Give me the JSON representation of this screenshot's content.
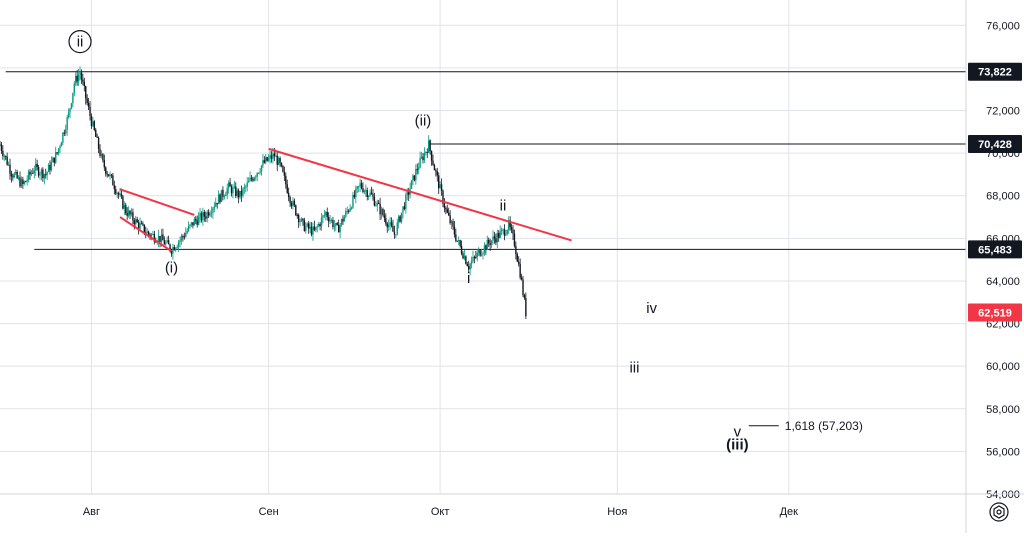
{
  "chart_data": {
    "type": "candlestick",
    "title": "",
    "xlabel": "",
    "ylabel": "",
    "ylim": [
      54000,
      77000
    ],
    "y_ticks": [
      54000,
      56000,
      58000,
      60000,
      62000,
      64000,
      66000,
      68000,
      70000,
      72000,
      74000,
      76000
    ],
    "y_tick_labels": [
      "54,000",
      "56,000",
      "58,000",
      "60,000",
      "62,000",
      "64,000",
      "66,000",
      "68,000",
      "70,000",
      "72,000",
      "74,000",
      "76,000"
    ],
    "x_tick_labels": [
      "Авг",
      "Сен",
      "Окт",
      "Ноя",
      "Дек"
    ],
    "x_range": [
      "2024-07-16",
      "2025-01-01"
    ],
    "x_ticks": [
      "2024-08-01",
      "2024-09-01",
      "2024-10-01",
      "2024-11-01",
      "2024-12-01"
    ],
    "grid": true,
    "price_path": [
      [
        "2024-07-16",
        70400
      ],
      [
        "2024-07-18",
        69100
      ],
      [
        "2024-07-20",
        68500
      ],
      [
        "2024-07-22",
        69300
      ],
      [
        "2024-07-24",
        69000
      ],
      [
        "2024-07-26",
        70000
      ],
      [
        "2024-07-28",
        71800
      ],
      [
        "2024-07-29",
        73300
      ],
      [
        "2024-07-30",
        73800
      ],
      [
        "2024-07-31",
        72600
      ],
      [
        "2024-08-01",
        71500
      ],
      [
        "2024-08-03",
        69500
      ],
      [
        "2024-08-05",
        68500
      ],
      [
        "2024-08-07",
        67300
      ],
      [
        "2024-08-09",
        66700
      ],
      [
        "2024-08-11",
        66200
      ],
      [
        "2024-08-13",
        66000
      ],
      [
        "2024-08-15",
        65500
      ],
      [
        "2024-08-17",
        66100
      ],
      [
        "2024-08-19",
        66800
      ],
      [
        "2024-08-21",
        67100
      ],
      [
        "2024-08-23",
        67800
      ],
      [
        "2024-08-25",
        68400
      ],
      [
        "2024-08-27",
        68000
      ],
      [
        "2024-08-29",
        68800
      ],
      [
        "2024-08-31",
        69500
      ],
      [
        "2024-09-02",
        69900
      ],
      [
        "2024-09-03",
        69400
      ],
      [
        "2024-09-05",
        67700
      ],
      [
        "2024-09-07",
        66600
      ],
      [
        "2024-09-09",
        66300
      ],
      [
        "2024-09-11",
        67200
      ],
      [
        "2024-09-13",
        66400
      ],
      [
        "2024-09-15",
        67400
      ],
      [
        "2024-09-17",
        68500
      ],
      [
        "2024-09-19",
        68000
      ],
      [
        "2024-09-21",
        67100
      ],
      [
        "2024-09-23",
        66200
      ],
      [
        "2024-09-25",
        67800
      ],
      [
        "2024-09-27",
        69300
      ],
      [
        "2024-09-29",
        70400
      ],
      [
        "2024-09-30",
        69300
      ],
      [
        "2024-10-02",
        67300
      ],
      [
        "2024-10-04",
        65900
      ],
      [
        "2024-10-06",
        64700
      ],
      [
        "2024-10-08",
        65400
      ],
      [
        "2024-10-10",
        65900
      ],
      [
        "2024-10-12",
        66300
      ],
      [
        "2024-10-13",
        66600
      ],
      [
        "2024-10-14",
        65800
      ],
      [
        "2024-10-15",
        64400
      ],
      [
        "2024-10-16",
        62519
      ]
    ],
    "horizontal_levels": [
      {
        "price": 73822,
        "label": "73,822"
      },
      {
        "price": 70428,
        "label": "70,428"
      },
      {
        "price": 65483,
        "label": "65,483"
      }
    ],
    "last_price": {
      "price": 62519,
      "label": "62,519",
      "color": "#f23645"
    },
    "trendlines": [
      {
        "from": [
          "2024-08-06",
          68300
        ],
        "to": [
          "2024-08-19",
          67100
        ]
      },
      {
        "from": [
          "2024-08-06",
          67000
        ],
        "to": [
          "2024-08-15",
          65400
        ]
      },
      {
        "from": [
          "2024-09-01",
          70200
        ],
        "to": [
          "2024-10-24",
          65900
        ]
      }
    ],
    "wave_labels": [
      {
        "text": "ii",
        "date": "2024-07-30",
        "price": 75000,
        "circled": true
      },
      {
        "text": "(i)",
        "date": "2024-08-15",
        "price": 64400
      },
      {
        "text": "(ii)",
        "date": "2024-09-28",
        "price": 71300
      },
      {
        "text": "ii",
        "date": "2024-10-12",
        "price": 67300
      },
      {
        "text": "i",
        "date": "2024-10-06",
        "price": 63900
      },
      {
        "text": "iv",
        "date": "2024-11-07",
        "price": 62500
      },
      {
        "text": "iii",
        "date": "2024-11-04",
        "price": 59700
      },
      {
        "text": "v",
        "date": "2024-11-22",
        "price": 56700
      },
      {
        "text": "(iii)",
        "date": "2024-11-22",
        "price": 56100
      }
    ],
    "fib_annotation": {
      "text": "1,618 (57,203)",
      "date": "2024-11-24",
      "price": 57203
    },
    "colors": {
      "up": "#089981",
      "down": "#131722",
      "trendline": "#f23645",
      "level": "#131722",
      "grid": "#e0e3eb"
    }
  }
}
